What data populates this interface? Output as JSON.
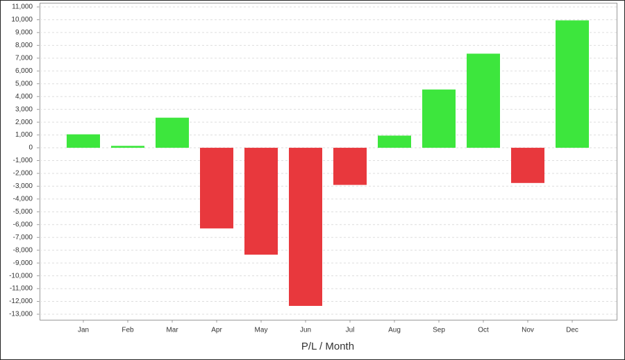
{
  "chart_data": {
    "type": "bar",
    "x_label": "P/L / Month",
    "categories": [
      "Jan",
      "Feb",
      "Mar",
      "Apr",
      "May",
      "Jun",
      "Jul",
      "Aug",
      "Sep",
      "Oct",
      "Nov",
      "Dec"
    ],
    "values": [
      1050,
      150,
      2350,
      -6300,
      -8350,
      -12350,
      -2900,
      950,
      4550,
      7350,
      -2750,
      9950
    ],
    "positive_color": "#3de63d",
    "negative_color": "#e8383d",
    "ylim": [
      -13000,
      11000
    ],
    "yticks": [
      {
        "value": -13000,
        "label": "-13,000"
      },
      {
        "value": -12000,
        "label": "-12,000"
      },
      {
        "value": -11000,
        "label": "-11,000"
      },
      {
        "value": -10000,
        "label": "-10,000"
      },
      {
        "value": -9000,
        "label": "-9,000"
      },
      {
        "value": -8000,
        "label": "-8,000"
      },
      {
        "value": -7000,
        "label": "-7,000"
      },
      {
        "value": -6000,
        "label": "-6,000"
      },
      {
        "value": -5000,
        "label": "-5,000"
      },
      {
        "value": -4000,
        "label": "-4,000"
      },
      {
        "value": -3000,
        "label": "-3,000"
      },
      {
        "value": -2000,
        "label": "-2,000"
      },
      {
        "value": -1000,
        "label": "-1,000"
      },
      0,
      {
        "value": 1000,
        "label": "1,000"
      },
      {
        "value": 2000,
        "label": "2,000"
      },
      {
        "value": 3000,
        "label": "3,000"
      },
      {
        "value": 4000,
        "label": "4,000"
      },
      {
        "value": 5000,
        "label": "5,000"
      },
      {
        "value": 6000,
        "label": "6,000"
      },
      {
        "value": 7000,
        "label": "7,000"
      },
      {
        "value": 8000,
        "label": "8,000"
      },
      {
        "value": 9000,
        "label": "9,000"
      },
      {
        "value": 10000,
        "label": "10,000"
      },
      {
        "value": 11000,
        "label": "11,000"
      }
    ],
    "grid": true
  }
}
